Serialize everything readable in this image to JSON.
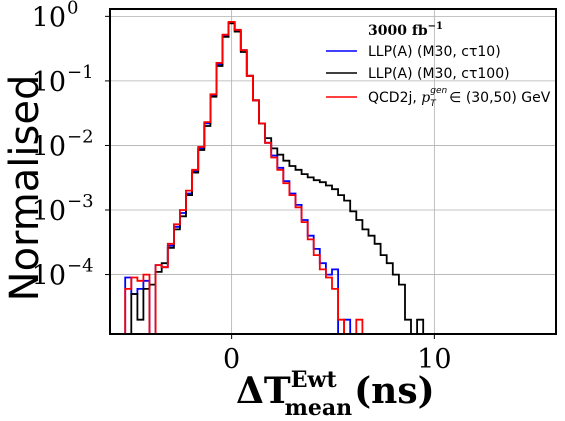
{
  "chart_data": {
    "type": "line",
    "style": "step-histogram",
    "title": "",
    "xlabel": {
      "main": "ΔT",
      "sup": "Ewt",
      "sub": "mean",
      "unit": "(ns)"
    },
    "ylabel": "Normalised",
    "yscale": "log",
    "xlim": [
      -6,
      16
    ],
    "ylim": [
      1.2e-05,
      1.3
    ],
    "x_ticks": [
      {
        "value": 0,
        "label": "0"
      },
      {
        "value": 10,
        "label": "10"
      }
    ],
    "y_ticks": [
      {
        "value": 0.0001,
        "base": "10",
        "exp": "−4"
      },
      {
        "value": 0.001,
        "base": "10",
        "exp": "−3"
      },
      {
        "value": 0.01,
        "base": "10",
        "exp": "−2"
      },
      {
        "value": 0.1,
        "base": "10",
        "exp": "−1"
      },
      {
        "value": 1,
        "base": "10",
        "exp": "0"
      }
    ],
    "grid": true,
    "legend_position": "top-right",
    "legend_title": {
      "base": "3000 fb",
      "exp": "−1"
    },
    "bin_width": 0.3,
    "series": [
      {
        "name": "LLP(A) (M30, cτ10)",
        "color": "#0000ff",
        "points": [
          [
            -5.1,
            9e-05
          ],
          [
            -4.8,
            5e-05
          ],
          [
            -4.5,
            6e-05
          ],
          [
            -4.2,
            8e-05
          ],
          [
            -3.6,
            0.00014
          ],
          [
            -3.3,
            0.00013
          ],
          [
            -3.0,
            0.00028
          ],
          [
            -2.7,
            0.00055
          ],
          [
            -2.4,
            0.0009
          ],
          [
            -2.1,
            0.0018
          ],
          [
            -1.8,
            0.004
          ],
          [
            -1.5,
            0.009
          ],
          [
            -1.2,
            0.022
          ],
          [
            -0.9,
            0.06
          ],
          [
            -0.6,
            0.18
          ],
          [
            -0.3,
            0.5
          ],
          [
            0.0,
            0.8
          ],
          [
            0.3,
            0.6
          ],
          [
            0.6,
            0.3
          ],
          [
            0.9,
            0.12
          ],
          [
            1.2,
            0.05
          ],
          [
            1.5,
            0.022
          ],
          [
            1.8,
            0.011
          ],
          [
            2.1,
            0.007
          ],
          [
            2.4,
            0.0045
          ],
          [
            2.7,
            0.0028
          ],
          [
            3.0,
            0.0018
          ],
          [
            3.3,
            0.0012
          ],
          [
            3.6,
            0.0007
          ],
          [
            3.9,
            0.0004
          ],
          [
            4.2,
            0.00025
          ],
          [
            4.5,
            0.00015
          ],
          [
            4.8,
            0.0001
          ],
          [
            5.1,
            0.00012
          ],
          [
            5.4,
            1e-05
          ],
          [
            5.7,
            2e-05
          ],
          [
            6.0,
            1e-05
          ]
        ]
      },
      {
        "name": "LLP(A) (M30, cτ100)",
        "color": "#000000",
        "points": [
          [
            -4.8,
            5e-05
          ],
          [
            -4.5,
            2e-05
          ],
          [
            -4.2,
            6e-05
          ],
          [
            -3.9,
            7e-05
          ],
          [
            -3.6,
            0.00011
          ],
          [
            -3.3,
            0.00015
          ],
          [
            -3.0,
            0.00026
          ],
          [
            -2.7,
            0.0005
          ],
          [
            -2.4,
            0.0008
          ],
          [
            -2.1,
            0.0017
          ],
          [
            -1.8,
            0.0038
          ],
          [
            -1.5,
            0.0085
          ],
          [
            -1.2,
            0.02
          ],
          [
            -0.9,
            0.057
          ],
          [
            -0.6,
            0.17
          ],
          [
            -0.3,
            0.48
          ],
          [
            0.0,
            0.78
          ],
          [
            0.3,
            0.58
          ],
          [
            0.6,
            0.28
          ],
          [
            0.9,
            0.12
          ],
          [
            1.2,
            0.05
          ],
          [
            1.5,
            0.022
          ],
          [
            1.8,
            0.013
          ],
          [
            2.1,
            0.009
          ],
          [
            2.4,
            0.0072
          ],
          [
            2.7,
            0.0058
          ],
          [
            3.0,
            0.0048
          ],
          [
            3.3,
            0.0042
          ],
          [
            3.6,
            0.0036
          ],
          [
            3.9,
            0.0032
          ],
          [
            4.2,
            0.0029
          ],
          [
            4.5,
            0.0027
          ],
          [
            4.8,
            0.0024
          ],
          [
            5.1,
            0.0021
          ],
          [
            5.4,
            0.0017
          ],
          [
            5.7,
            0.0014
          ],
          [
            6.0,
            0.00095
          ],
          [
            6.3,
            0.0007
          ],
          [
            6.6,
            0.0005
          ],
          [
            6.9,
            0.0004
          ],
          [
            7.2,
            0.0003
          ],
          [
            7.5,
            0.0002
          ],
          [
            7.8,
            0.00015
          ],
          [
            8.1,
            0.0001
          ],
          [
            8.4,
            7e-05
          ],
          [
            8.7,
            2e-05
          ],
          [
            9.0,
            1e-05
          ],
          [
            9.3,
            2e-05
          ],
          [
            9.6,
            1e-05
          ],
          [
            9.9,
            1.2e-05
          ]
        ]
      },
      {
        "name": "QCD2j, p_T^gen ∈ (30,50) GeV",
        "color": "#ff0000",
        "points": [
          [
            -5.1,
            6e-05
          ],
          [
            -4.8,
            9e-05
          ],
          [
            -4.5,
            8e-05
          ],
          [
            -4.2,
            0.0001
          ],
          [
            -3.6,
            0.00014
          ],
          [
            -3.3,
            0.00013
          ],
          [
            -3.0,
            0.0003
          ],
          [
            -2.7,
            0.0006
          ],
          [
            -2.4,
            0.001
          ],
          [
            -2.1,
            0.002
          ],
          [
            -1.8,
            0.0042
          ],
          [
            -1.5,
            0.0095
          ],
          [
            -1.2,
            0.023
          ],
          [
            -0.9,
            0.062
          ],
          [
            -0.6,
            0.19
          ],
          [
            -0.3,
            0.52
          ],
          [
            0.0,
            0.82
          ],
          [
            0.3,
            0.62
          ],
          [
            0.6,
            0.3
          ],
          [
            0.9,
            0.12
          ],
          [
            1.2,
            0.05
          ],
          [
            1.5,
            0.022
          ],
          [
            1.8,
            0.011
          ],
          [
            2.1,
            0.0065
          ],
          [
            2.4,
            0.0042
          ],
          [
            2.7,
            0.0026
          ],
          [
            3.0,
            0.0017
          ],
          [
            3.3,
            0.0011
          ],
          [
            3.6,
            0.00065
          ],
          [
            3.9,
            0.00035
          ],
          [
            4.2,
            0.0002
          ],
          [
            4.5,
            0.00012
          ],
          [
            4.8,
            9e-05
          ],
          [
            5.1,
            6e-05
          ],
          [
            5.4,
            2e-05
          ],
          [
            5.7,
            1e-05
          ],
          [
            6.0,
            1e-05
          ],
          [
            6.3,
            2e-05
          ],
          [
            6.6,
            1e-05
          ]
        ]
      }
    ],
    "legend_entries": [
      {
        "label": "LLP(A) (M30, cτ10)",
        "color": "#0000ff"
      },
      {
        "label": "LLP(A) (M30, cτ100)",
        "color": "#000000"
      },
      {
        "label_prefix": "QCD2j, ",
        "label_italic": "p",
        "label_sub": "T",
        "label_sup": "gen",
        "label_suffix": " ∈ (30,50) GeV",
        "color": "#ff0000"
      }
    ]
  }
}
